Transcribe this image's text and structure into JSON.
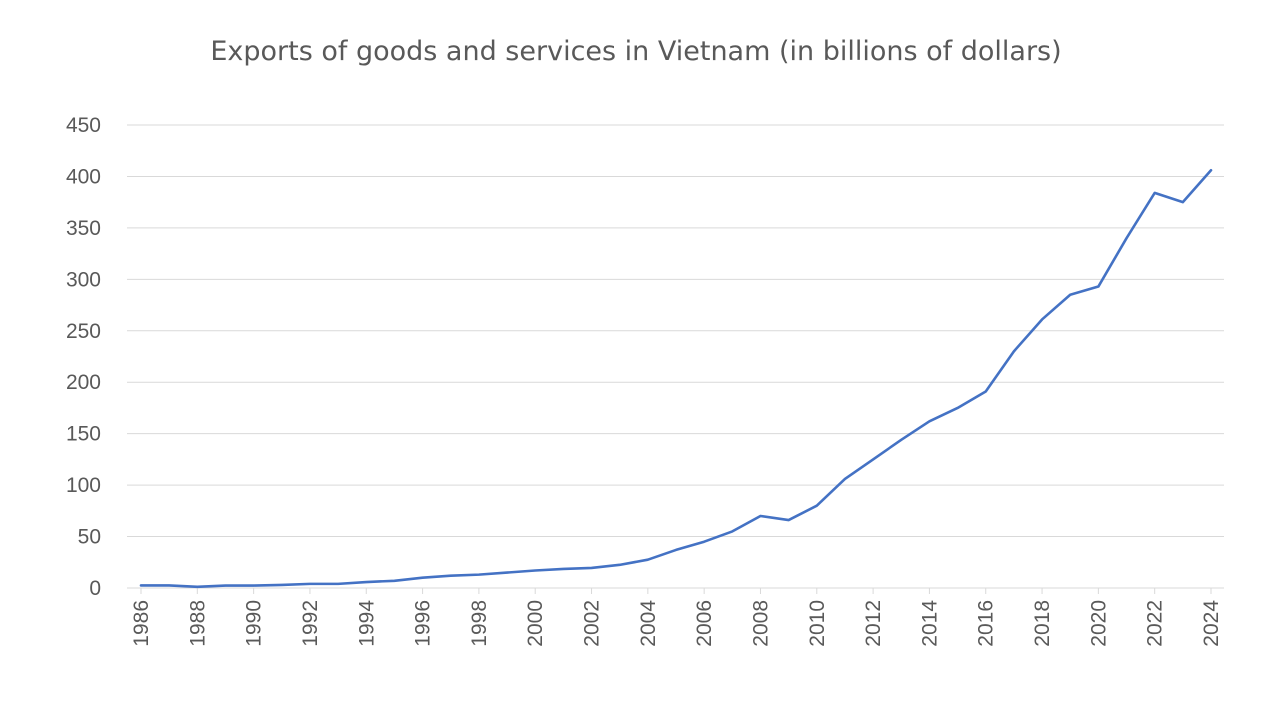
{
  "chart_data": {
    "type": "line",
    "title": "Exports of goods and services in Vietnam (in billions of dollars)",
    "xlabel": "",
    "ylabel": "",
    "ylim": [
      0,
      450
    ],
    "yticks": [
      0,
      50,
      100,
      150,
      200,
      250,
      300,
      350,
      400,
      450
    ],
    "xticks": [
      1986,
      1988,
      1990,
      1992,
      1994,
      1996,
      1998,
      2000,
      2002,
      2004,
      2006,
      2008,
      2010,
      2012,
      2014,
      2016,
      2018,
      2020,
      2022,
      2024
    ],
    "grid": true,
    "line_color": "#4472c4",
    "x": [
      1986,
      1987,
      1988,
      1989,
      1990,
      1991,
      1992,
      1993,
      1994,
      1995,
      1996,
      1997,
      1998,
      1999,
      2000,
      2001,
      2002,
      2003,
      2004,
      2005,
      2006,
      2007,
      2008,
      2009,
      2010,
      2011,
      2012,
      2013,
      2014,
      2015,
      2016,
      2017,
      2018,
      2019,
      2020,
      2021,
      2022,
      2023,
      2024
    ],
    "values": [
      2.5,
      2.5,
      1.2,
      2.4,
      2.4,
      3,
      4,
      4,
      5.8,
      7,
      10,
      12,
      13,
      15,
      17,
      18.5,
      19.5,
      22.5,
      27.5,
      37,
      45,
      55,
      70,
      66,
      80,
      106,
      125,
      144,
      162,
      175,
      191,
      230,
      261,
      285,
      293,
      340,
      384,
      375,
      406
    ]
  }
}
